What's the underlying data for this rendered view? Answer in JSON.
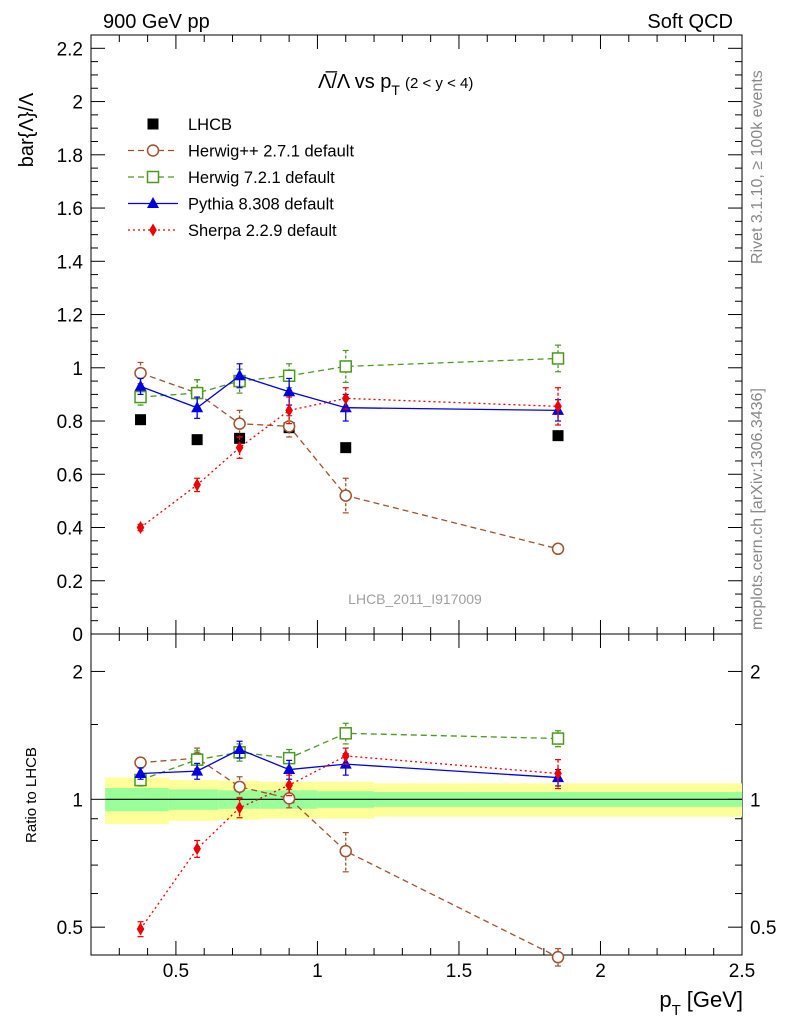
{
  "header": {
    "left": "900 GeV pp",
    "right": "Soft QCD"
  },
  "side_text": {
    "rivet": "Rivet 3.1.10, ≥ 100k events",
    "mcplots": "mcplots.cern.ch [arXiv:1306.3436]"
  },
  "watermark": "LHCB_2011_I917009",
  "chart_data": [
    {
      "type": "scatter",
      "title": {
        "main": "Λ̅/Λ vs p",
        "sub": "T",
        "cond": "(2 < y < 4)"
      },
      "ylabel": "bar{Λ}/Λ",
      "xlim": [
        0.2,
        2.5
      ],
      "ylim": [
        0,
        2.25
      ],
      "yticks": [
        "0",
        "0.2",
        "0.4",
        "0.6",
        "0.8",
        "1",
        "1.2",
        "1.4",
        "1.6",
        "1.8",
        "2",
        "2.2"
      ],
      "ytick_values": [
        0,
        0.2,
        0.4,
        0.6,
        0.8,
        1.0,
        1.2,
        1.4,
        1.6,
        1.8,
        2.0,
        2.2
      ],
      "legend_position": "top-left",
      "series": [
        {
          "name": "LHCB",
          "color": "#000000",
          "marker": "square-filled",
          "line": "none",
          "x": [
            0.375,
            0.575,
            0.725,
            0.9,
            1.1,
            1.85
          ],
          "y": [
            0.805,
            0.73,
            0.735,
            0.775,
            0.7,
            0.745
          ],
          "err": [
            0,
            0,
            0,
            0,
            0,
            0
          ]
        },
        {
          "name": "Herwig++ 2.7.1 default",
          "color": "#a0522d",
          "marker": "circle-open",
          "line": "dashed",
          "x": [
            0.375,
            0.575,
            0.725,
            0.9,
            1.1,
            1.85
          ],
          "y": [
            0.98,
            0.905,
            0.79,
            0.78,
            0.52,
            0.32
          ],
          "err": [
            0.04,
            0.05,
            0.05,
            0.04,
            0.065,
            0.015
          ]
        },
        {
          "name": "Herwig 7.2.1 default",
          "color": "#4a9a1f",
          "marker": "square-open",
          "line": "dashed",
          "x": [
            0.375,
            0.575,
            0.725,
            0.9,
            1.1,
            1.85
          ],
          "y": [
            0.89,
            0.905,
            0.95,
            0.97,
            1.005,
            1.035
          ],
          "err": [
            0.03,
            0.05,
            0.045,
            0.045,
            0.06,
            0.05
          ]
        },
        {
          "name": "Pythia 8.308 default",
          "color": "#0000e0",
          "marker": "triangle-filled",
          "line": "solid",
          "x": [
            0.375,
            0.575,
            0.725,
            0.9,
            1.1,
            1.85
          ],
          "y": [
            0.93,
            0.85,
            0.97,
            0.91,
            0.85,
            0.84
          ],
          "err": [
            0.03,
            0.04,
            0.045,
            0.05,
            0.05,
            0.04
          ]
        },
        {
          "name": "Sherpa 2.2.9 default",
          "color": "#ee0000",
          "marker": "diamond-filled",
          "line": "dotted",
          "x": [
            0.375,
            0.575,
            0.725,
            0.9,
            1.1,
            1.85
          ],
          "y": [
            0.4,
            0.56,
            0.7,
            0.84,
            0.885,
            0.855
          ],
          "err": [
            0.012,
            0.025,
            0.04,
            0.05,
            0.04,
            0.07
          ]
        }
      ]
    },
    {
      "type": "scatter",
      "ylabel": "Ratio to LHCB",
      "xlabel": {
        "main": "p",
        "sub": "T",
        "unit": "[GeV]"
      },
      "xlim": [
        0.2,
        2.5
      ],
      "ylim": [
        0.43,
        2.45
      ],
      "yscale": "log",
      "xticks": [
        "0.5",
        "1",
        "1.5",
        "2",
        "2.5"
      ],
      "xtick_values": [
        0.5,
        1.0,
        1.5,
        2.0,
        2.5
      ],
      "yticks": [
        "0.5",
        "1",
        "2"
      ],
      "ytick_values": [
        0.5,
        1.0,
        2.0
      ],
      "reference_bands": {
        "edges": [
          0.25,
          0.475,
          0.65,
          0.8,
          1.0,
          1.2,
          2.5
        ],
        "inner": [
          0.063,
          0.055,
          0.05,
          0.05,
          0.045,
          0.04
        ],
        "outer": [
          0.125,
          0.11,
          0.105,
          0.1,
          0.1,
          0.09
        ],
        "inner_color": "#99ff99",
        "outer_color": "#ffff99"
      },
      "series": [
        {
          "name": "Herwig++ 2.7.1 default",
          "color": "#a0522d",
          "marker": "circle-open",
          "line": "dashed",
          "x": [
            0.375,
            0.575,
            0.725,
            0.9,
            1.1,
            1.85
          ],
          "y": [
            1.22,
            1.25,
            1.07,
            1.005,
            0.755,
            0.425
          ],
          "err": [
            0.03,
            0.07,
            0.06,
            0.05,
            0.08,
            0.02
          ]
        },
        {
          "name": "Herwig 7.2.1 default",
          "color": "#4a9a1f",
          "marker": "square-open",
          "line": "dashed",
          "x": [
            0.375,
            0.575,
            0.725,
            0.9,
            1.1,
            1.85
          ],
          "y": [
            1.11,
            1.24,
            1.29,
            1.25,
            1.43,
            1.39
          ],
          "err": [
            0.035,
            0.06,
            0.06,
            0.06,
            0.08,
            0.06
          ]
        },
        {
          "name": "Pythia 8.308 default",
          "color": "#0000e0",
          "marker": "triangle-filled",
          "line": "solid",
          "x": [
            0.375,
            0.575,
            0.725,
            0.9,
            1.1,
            1.85
          ],
          "y": [
            1.15,
            1.165,
            1.31,
            1.175,
            1.21,
            1.125
          ],
          "err": [
            0.035,
            0.05,
            0.06,
            0.06,
            0.07,
            0.05
          ]
        },
        {
          "name": "Sherpa 2.2.9 default",
          "color": "#ee0000",
          "marker": "diamond-filled",
          "line": "dotted",
          "x": [
            0.375,
            0.575,
            0.725,
            0.9,
            1.1,
            1.85
          ],
          "y": [
            0.495,
            0.765,
            0.955,
            1.08,
            1.265,
            1.15
          ],
          "err": [
            0.02,
            0.035,
            0.05,
            0.06,
            0.055,
            0.09
          ]
        }
      ]
    }
  ]
}
